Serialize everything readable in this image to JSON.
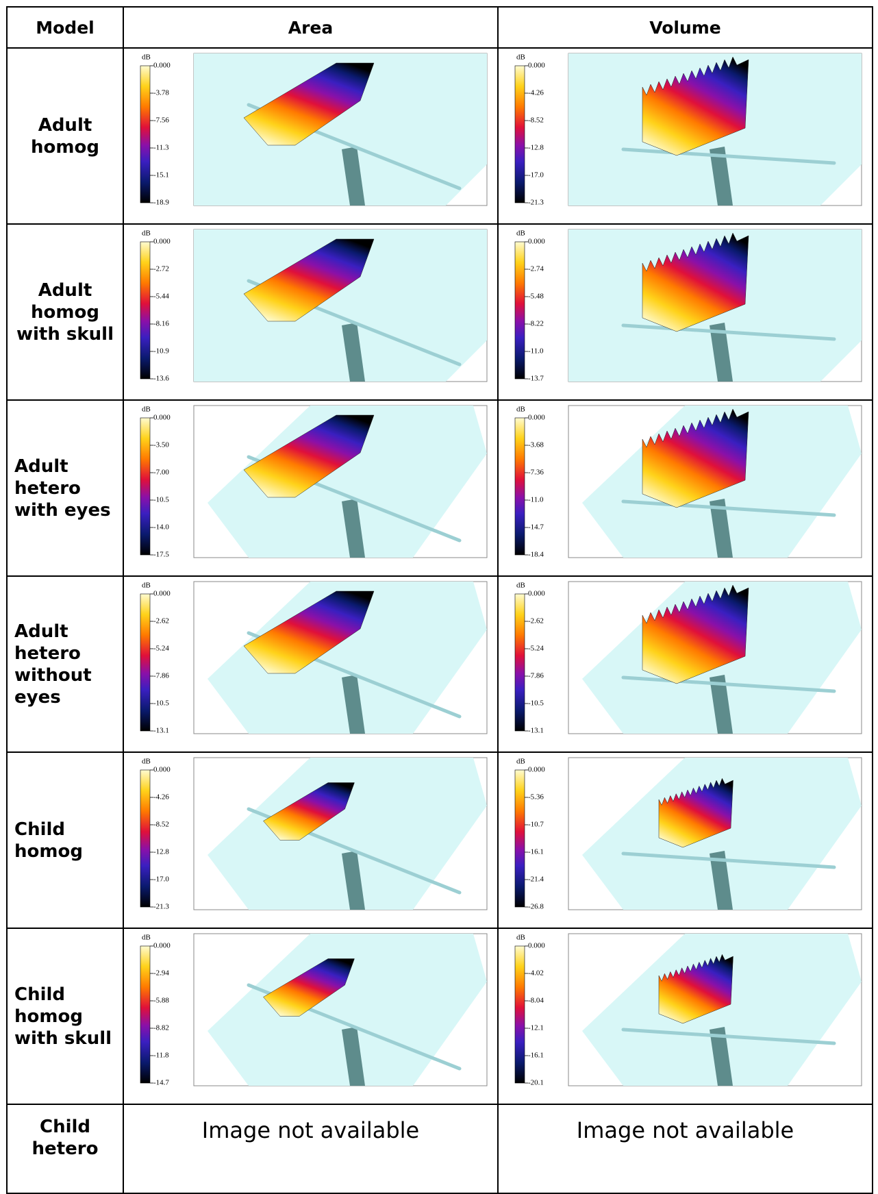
{
  "table": {
    "headers": [
      "Model",
      "Area",
      "Volume"
    ],
    "rows": [
      {
        "model": [
          "Adult",
          "homog"
        ],
        "area": {
          "unit": "dB",
          "ticks": [
            "0.000",
            "-3.78",
            "-7.56",
            "-11.3",
            "-15.1",
            "-18.9"
          ]
        },
        "volume": {
          "unit": "dB",
          "ticks": [
            "0.000",
            "-4.26",
            "-8.52",
            "-12.8",
            "-17.0",
            "-21.3"
          ]
        }
      },
      {
        "model": [
          "Adult",
          "homog",
          "with skull"
        ],
        "area": {
          "unit": "dB",
          "ticks": [
            "0.000",
            "-2.72",
            "-5.44",
            "-8.16",
            "-10.9",
            "-13.6"
          ]
        },
        "volume": {
          "unit": "dB",
          "ticks": [
            "0.000",
            "-2.74",
            "-5.48",
            "-8.22",
            "-11.0",
            "-13.7"
          ]
        }
      },
      {
        "model": [
          "Adult",
          "hetero",
          "with eyes"
        ],
        "area": {
          "unit": "dB",
          "ticks": [
            "0.000",
            "-3.50",
            "-7.00",
            "-10.5",
            "-14.0",
            "-17.5"
          ]
        },
        "volume": {
          "unit": "dB",
          "ticks": [
            "0.000",
            "-3.68",
            "-7.36",
            "-11.0",
            "-14.7",
            "-18.4"
          ]
        }
      },
      {
        "model": [
          "Adult",
          "hetero",
          "without",
          "eyes"
        ],
        "area": {
          "unit": "dB",
          "ticks": [
            "0.000",
            "-2.62",
            "-5.24",
            "-7.86",
            "-10.5",
            "-13.1"
          ]
        },
        "volume": {
          "unit": "dB",
          "ticks": [
            "0.000",
            "-2.62",
            "-5.24",
            "-7.86",
            "-10.5",
            "-13.1"
          ]
        }
      },
      {
        "model": [
          "Child",
          "homog"
        ],
        "area": {
          "unit": "dB",
          "ticks": [
            "0.000",
            "-4.26",
            "-8.52",
            "-12.8",
            "-17.0",
            "-21.3"
          ]
        },
        "volume": {
          "unit": "dB",
          "ticks": [
            "0.000",
            "-5.36",
            "-10.7",
            "-16.1",
            "-21.4",
            "-26.8"
          ]
        }
      },
      {
        "model": [
          "Child",
          "homog",
          "with skull"
        ],
        "area": {
          "unit": "dB",
          "ticks": [
            "0.000",
            "-2.94",
            "-5.88",
            "-8.82",
            "-11.8",
            "-14.7"
          ]
        },
        "volume": {
          "unit": "dB",
          "ticks": [
            "0.000",
            "-4.02",
            "-8.04",
            "-12.1",
            "-16.1",
            "-20.1"
          ]
        }
      },
      {
        "model": [
          "Child",
          "hetero"
        ],
        "area": {
          "text": "Image not available"
        },
        "volume": {
          "text": "Image not available"
        }
      }
    ]
  }
}
